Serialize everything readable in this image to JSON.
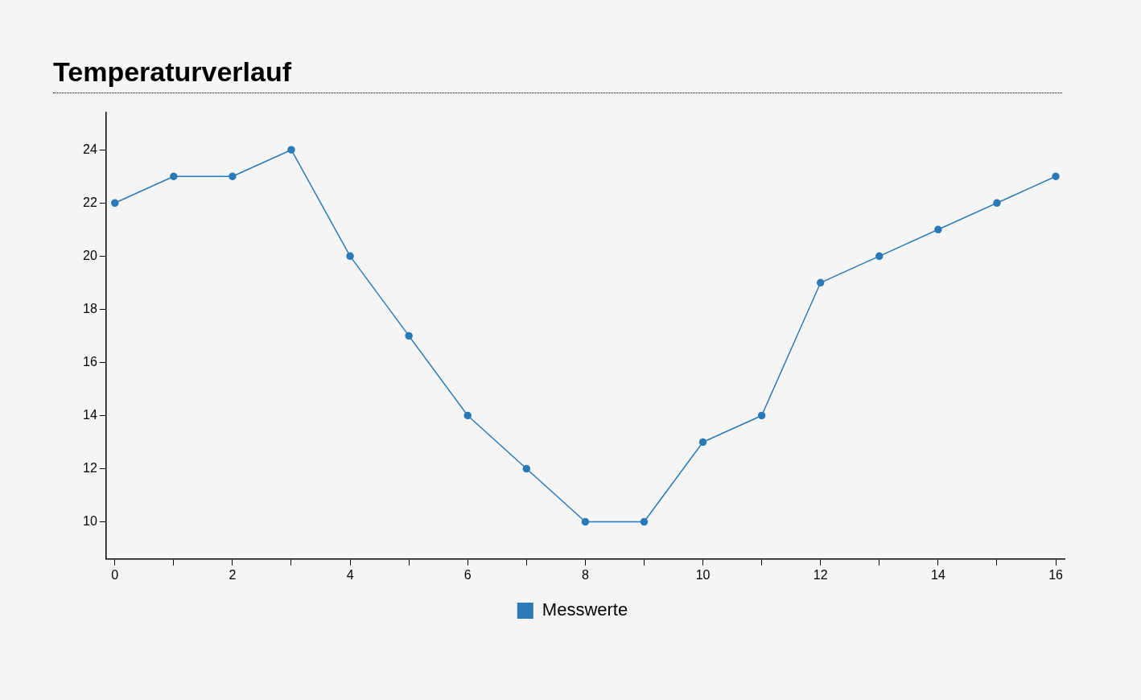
{
  "chart_data": {
    "type": "line",
    "title": "Temperaturverlauf",
    "x": [
      0,
      1,
      2,
      3,
      4,
      5,
      6,
      7,
      8,
      9,
      10,
      11,
      12,
      13,
      14,
      15,
      16
    ],
    "series": [
      {
        "name": "Messwerte",
        "color": "#2a7ab9",
        "values": [
          22,
          23,
          23,
          24,
          20,
          17,
          14,
          12,
          10,
          10,
          13,
          14,
          19,
          20,
          21,
          22,
          23
        ]
      }
    ],
    "xlim": [
      -0.15,
      16.15
    ],
    "xticks": [
      0,
      {
        "value": 1,
        "label": null
      },
      2,
      {
        "value": 3,
        "label": null
      },
      4,
      {
        "value": 5,
        "label": null
      },
      6,
      {
        "value": 7,
        "label": null
      },
      8,
      {
        "value": 9,
        "label": null
      },
      10,
      {
        "value": 11,
        "label": null
      },
      12,
      {
        "value": 13,
        "label": null
      },
      14,
      {
        "value": 15,
        "label": null
      },
      16
    ],
    "ylim": [
      8.6,
      25.4
    ],
    "yticks": [
      10,
      12,
      14,
      16,
      18,
      20,
      22,
      24
    ],
    "grid": false,
    "legend": "bottom",
    "marker": "circle",
    "line_style": "solid"
  }
}
